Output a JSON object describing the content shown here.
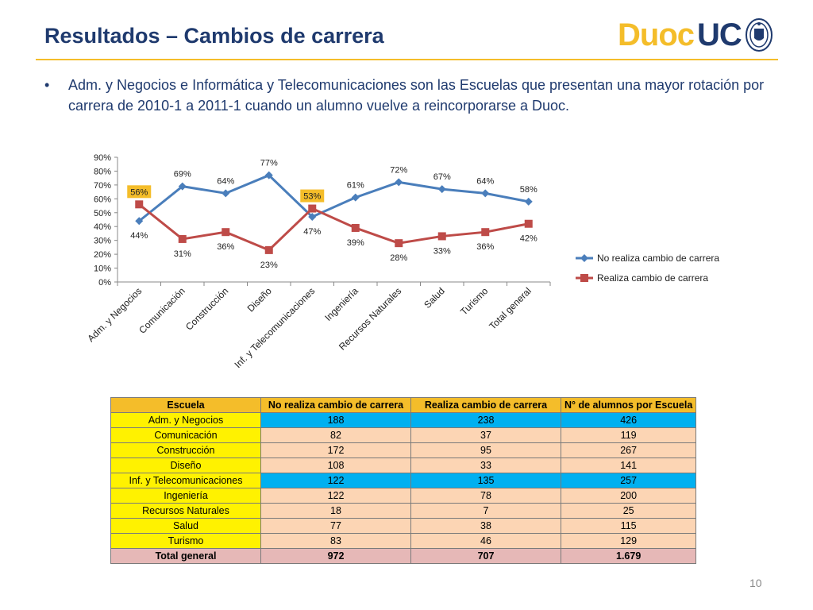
{
  "slide": {
    "title": "Resultados – Cambios de carrera",
    "logo_duoc": "Duoc",
    "logo_uc": "UC",
    "bullet_symbol": "•",
    "bullet_text": "Adm. y Negocios e Informática y Telecomunicaciones son las Escuelas que presentan una mayor rotación por carrera de 2010-1 a 2011-1 cuando un alumno vuelve a reincorporarse a Duoc.",
    "page_number": "10",
    "accent_color": "#f4bd2a",
    "title_color": "#1f3a6e"
  },
  "chart_data": {
    "type": "line",
    "categories": [
      "Adm. y Negocios",
      "Comunicación",
      "Construcción",
      "Diseño",
      "Inf. y Telecomunicaciones",
      "Ingeniería",
      "Recursos Naturales",
      "Salud",
      "Turismo",
      "Total general"
    ],
    "series": [
      {
        "name": "No realiza cambio de carrera",
        "values": [
          44,
          69,
          64,
          77,
          47,
          61,
          72,
          67,
          64,
          58
        ],
        "color": "#4a7ebb",
        "marker": "diamond"
      },
      {
        "name": "Realiza cambio de carrera",
        "values": [
          56,
          31,
          36,
          23,
          53,
          39,
          28,
          33,
          36,
          42
        ],
        "color": "#be4b48",
        "marker": "square"
      }
    ],
    "ylim": [
      0,
      90
    ],
    "y_ticks": [
      "0%",
      "10%",
      "20%",
      "30%",
      "40%",
      "50%",
      "60%",
      "70%",
      "80%",
      "90%"
    ],
    "value_suffix": "%",
    "highlighted_labels": [
      {
        "series": 1,
        "index": 0
      },
      {
        "series": 1,
        "index": 4
      }
    ],
    "highlight_color": "#f4bd2a",
    "grid": false,
    "legend_position": "right"
  },
  "table": {
    "headers": [
      "Escuela",
      "No realiza cambio de carrera",
      "Realiza cambio de carrera",
      "N° de alumnos por Escuela"
    ],
    "rows": [
      {
        "cells": [
          "Adm. y Negocios",
          "188",
          "238",
          "426"
        ],
        "highlight": true
      },
      {
        "cells": [
          "Comunicación",
          "82",
          "37",
          "119"
        ],
        "highlight": false
      },
      {
        "cells": [
          "Construcción",
          "172",
          "95",
          "267"
        ],
        "highlight": false
      },
      {
        "cells": [
          "Diseño",
          "108",
          "33",
          "141"
        ],
        "highlight": false
      },
      {
        "cells": [
          "Inf. y Telecomunicaciones",
          "122",
          "135",
          "257"
        ],
        "highlight": true
      },
      {
        "cells": [
          "Ingeniería",
          "122",
          "78",
          "200"
        ],
        "highlight": false
      },
      {
        "cells": [
          "Recursos Naturales",
          "18",
          "7",
          "25"
        ],
        "highlight": false
      },
      {
        "cells": [
          "Salud",
          "77",
          "38",
          "115"
        ],
        "highlight": false
      },
      {
        "cells": [
          "Turismo",
          "83",
          "46",
          "129"
        ],
        "highlight": false
      }
    ],
    "total": [
      "Total general",
      "972",
      "707",
      "1.679"
    ]
  }
}
